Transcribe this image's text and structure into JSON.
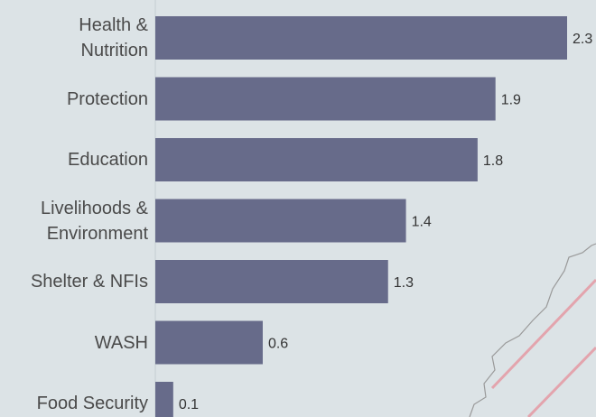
{
  "chart_data": {
    "type": "bar",
    "orientation": "horizontal",
    "categories": [
      "Health & Nutrition",
      "Protection",
      "Education",
      "Livelihoods & Environment",
      "Shelter & NFIs",
      "WASH",
      "Food Security"
    ],
    "values": [
      2.3,
      1.9,
      1.8,
      1.4,
      1.3,
      0.6,
      0.1
    ],
    "color": "#676b8a"
  }
}
